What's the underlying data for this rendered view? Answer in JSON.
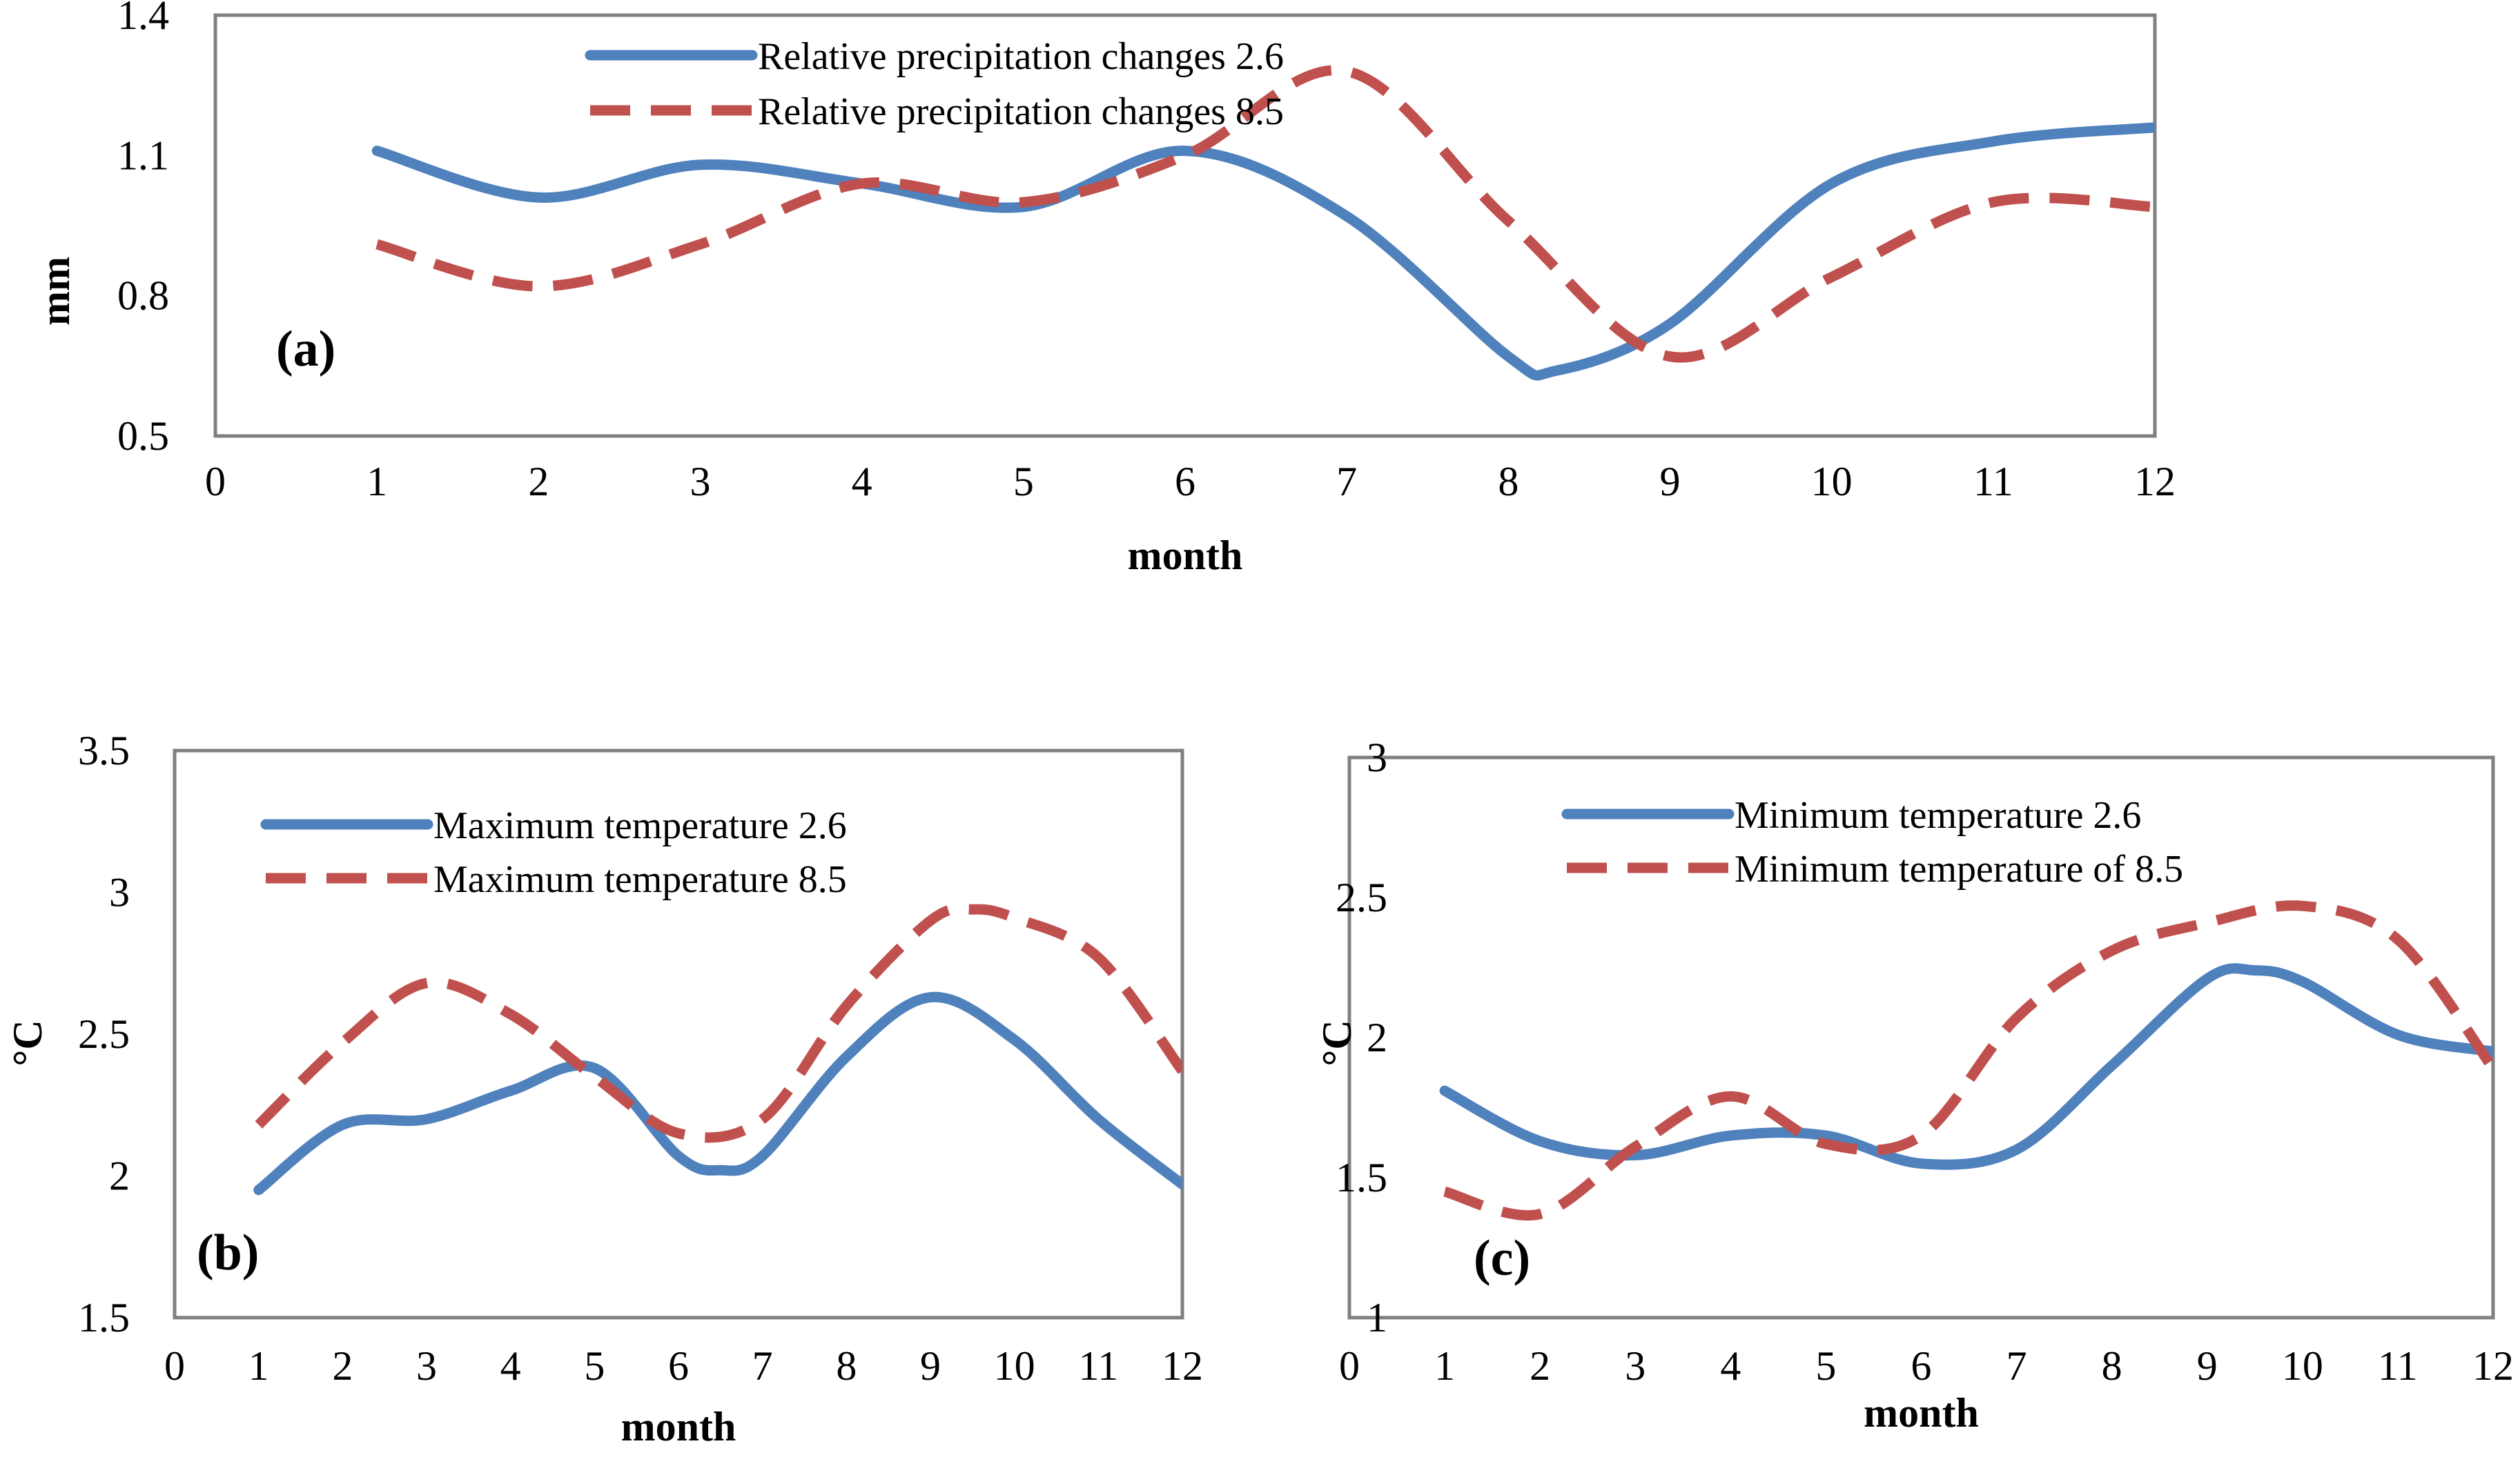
{
  "chart_data": [
    {
      "type": "line",
      "panel_label": "(a)",
      "title": "",
      "xlabel": "month",
      "ylabel": "mm",
      "xlim": [
        0,
        12
      ],
      "ylim": [
        0.5,
        1.4
      ],
      "x_ticks": [
        "0",
        "1",
        "2",
        "3",
        "4",
        "5",
        "6",
        "7",
        "8",
        "9",
        "10",
        "11",
        "12"
      ],
      "y_ticks": [
        "0.5",
        "0.8",
        "1.1",
        "1.4"
      ],
      "legend_position": "top-center",
      "series": [
        {
          "name": "Relative precipitation changes 2.6",
          "color": "#4f81bd",
          "style": "solid",
          "x": [
            1,
            2,
            3,
            4,
            5,
            6,
            7,
            8,
            8.3,
            9,
            10,
            11,
            12
          ],
          "values": [
            1.11,
            1.01,
            1.08,
            1.04,
            0.99,
            1.11,
            0.97,
            0.67,
            0.64,
            0.74,
            1.04,
            1.13,
            1.16
          ]
        },
        {
          "name": "Relative precipitation changes 8.5",
          "color": "#c0504d",
          "style": "dashed",
          "x": [
            1,
            2,
            3,
            4,
            5,
            6,
            7,
            8,
            9,
            10,
            11,
            12
          ],
          "values": [
            0.91,
            0.82,
            0.91,
            1.04,
            1.0,
            1.1,
            1.28,
            0.96,
            0.67,
            0.84,
            1.0,
            0.99
          ]
        }
      ]
    },
    {
      "type": "line",
      "panel_label": "(b)",
      "title": "",
      "xlabel": "month",
      "ylabel": "°C",
      "xlim": [
        0,
        12
      ],
      "ylim": [
        1.5,
        3.5
      ],
      "x_ticks": [
        "0",
        "1",
        "2",
        "3",
        "4",
        "5",
        "6",
        "7",
        "8",
        "9",
        "10",
        "11",
        "12"
      ],
      "y_ticks": [
        "1.5",
        "2",
        "2.5",
        "3",
        "3.5"
      ],
      "legend_position": "top-left",
      "series": [
        {
          "name": "Maximum temperature 2.6",
          "color": "#4f81bd",
          "style": "solid",
          "x": [
            1,
            2,
            3,
            4,
            5,
            6,
            6.5,
            7,
            8,
            9,
            10,
            11,
            12
          ],
          "values": [
            1.95,
            2.18,
            2.2,
            2.3,
            2.38,
            2.07,
            2.02,
            2.07,
            2.42,
            2.63,
            2.48,
            2.2,
            1.97
          ]
        },
        {
          "name": "Maximum temperature 8.5",
          "color": "#c0504d",
          "style": "dashed",
          "x": [
            1,
            2,
            3,
            4,
            5,
            6,
            7,
            8,
            9,
            9.5,
            10,
            11,
            12
          ],
          "values": [
            2.18,
            2.47,
            2.68,
            2.57,
            2.35,
            2.15,
            2.2,
            2.6,
            2.9,
            2.94,
            2.91,
            2.77,
            2.37
          ]
        }
      ]
    },
    {
      "type": "line",
      "panel_label": "(c)",
      "title": "",
      "xlabel": "month",
      "ylabel": "°C",
      "xlim": [
        0,
        12
      ],
      "ylim": [
        1,
        3
      ],
      "x_ticks": [
        "0",
        "1",
        "2",
        "3",
        "4",
        "5",
        "6",
        "7",
        "8",
        "9",
        "10",
        "11",
        "12"
      ],
      "y_ticks": [
        "1",
        "1.5",
        "2",
        "2.5",
        "3"
      ],
      "legend_position": "top-left",
      "series": [
        {
          "name": "Minimum temperature 2.6",
          "color": "#4f81bd",
          "style": "solid",
          "x": [
            1,
            2,
            3,
            4,
            5,
            6,
            7,
            8,
            9,
            9.5,
            10,
            11,
            12
          ],
          "values": [
            1.81,
            1.63,
            1.58,
            1.65,
            1.65,
            1.55,
            1.6,
            1.9,
            2.21,
            2.24,
            2.2,
            2.01,
            1.95
          ]
        },
        {
          "name": "Minimum temperature of 8.5",
          "color": "#c0504d",
          "style": "dashed",
          "x": [
            1,
            2,
            3,
            4,
            5,
            6,
            7,
            8,
            9,
            10,
            11,
            12
          ],
          "values": [
            1.45,
            1.37,
            1.61,
            1.79,
            1.62,
            1.65,
            2.07,
            2.31,
            2.41,
            2.47,
            2.35,
            1.89
          ]
        }
      ]
    }
  ]
}
